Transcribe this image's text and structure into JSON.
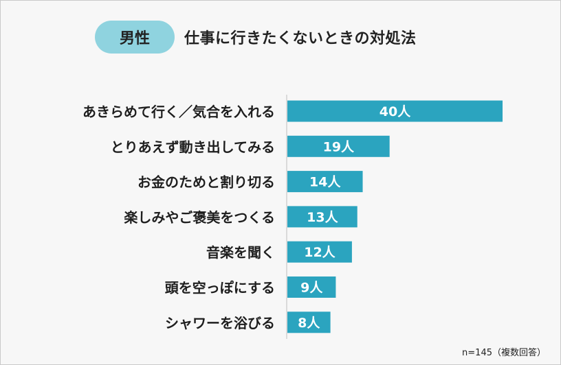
{
  "header": {
    "badge": "男性",
    "title": "仕事に行きたくないときの対処法"
  },
  "footnote": "n=145（複数回答）",
  "colors": {
    "bar": "#2ba4bf",
    "badge": "#8fd3df",
    "bar_label": "#ffffff"
  },
  "chart_data": {
    "type": "bar",
    "orientation": "horizontal",
    "title": "",
    "xlabel": "",
    "ylabel": "",
    "xlim": [
      0,
      40
    ],
    "grid": false,
    "legend": "none",
    "unit": "人",
    "categories": [
      "あきらめて行く／気合を入れる",
      "とりあえず動き出してみる",
      "お金のためと割り切る",
      "楽しみやご褒美をつくる",
      "音楽を聞く",
      "頭を空っぽにする",
      "シャワーを浴びる"
    ],
    "values": [
      40,
      19,
      14,
      13,
      12,
      9,
      8
    ],
    "value_labels": [
      "40人",
      "19人",
      "14人",
      "13人",
      "12人",
      "9人",
      "8人"
    ]
  }
}
